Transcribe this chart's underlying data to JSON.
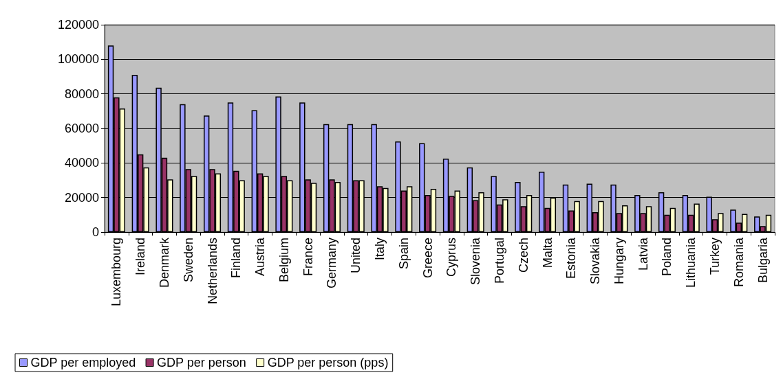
{
  "chart_data": {
    "type": "bar",
    "categories": [
      "Luxembourg",
      "Ireland",
      "Denmark",
      "Sweden",
      "Netherlands",
      "Finland",
      "Austria",
      "Belgium",
      "France",
      "Germany",
      "United",
      "Italy",
      "Spain",
      "Greece",
      "Cyprus",
      "Slovenia",
      "Portugal",
      "Czech",
      "Malta",
      "Estonia",
      "Slovakia",
      "Hungary",
      "Latvia",
      "Poland",
      "Lithuania",
      "Turkey",
      "Romania",
      "Bulgaria"
    ],
    "series": [
      {
        "name": "GDP per employed",
        "color": "#9999ff",
        "values": [
          108000,
          91000,
          83500,
          74000,
          67500,
          75000,
          70500,
          78500,
          75000,
          62500,
          62500,
          62500,
          52500,
          51500,
          42500,
          37500,
          32500,
          29000,
          35000,
          27500,
          28000,
          27500,
          21500,
          23000,
          21500,
          20500,
          13000,
          9000
        ]
      },
      {
        "name": "GDP per person",
        "color": "#993366",
        "values": [
          78000,
          45000,
          43000,
          36500,
          36500,
          35500,
          34000,
          32500,
          30500,
          30500,
          30000,
          26500,
          24000,
          21500,
          21000,
          18500,
          16000,
          15000,
          14000,
          12500,
          11500,
          11000,
          11000,
          10000,
          10000,
          7500,
          5500,
          3500
        ]
      },
      {
        "name": "GDP per person (pps)",
        "color": "#ffffcc",
        "values": [
          71500,
          37500,
          30500,
          32500,
          34000,
          30000,
          32500,
          30000,
          28500,
          29000,
          30000,
          25500,
          26500,
          25000,
          24000,
          23000,
          19000,
          21500,
          20000,
          18000,
          18000,
          15500,
          15000,
          14000,
          16500,
          11000,
          10500,
          10000
        ]
      }
    ],
    "ylim": [
      0,
      120000
    ],
    "yticks": [
      0,
      20000,
      40000,
      60000,
      80000,
      100000,
      120000
    ],
    "grid": "y",
    "legend": "bottom left"
  }
}
